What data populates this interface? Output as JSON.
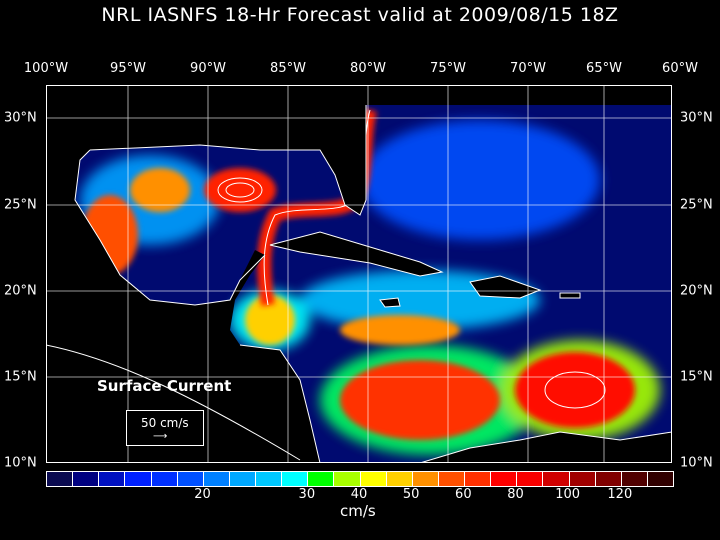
{
  "title": "NRL IASNFS  18-Hr Forecast valid at 2009/08/15 18Z",
  "lon_labels": [
    "100°W",
    "95°W",
    "90°W",
    "85°W",
    "80°W",
    "75°W",
    "70°W",
    "65°W",
    "60°W"
  ],
  "lat_labels": [
    "30°N",
    "25°N",
    "20°N",
    "15°N",
    "10°N"
  ],
  "legend": {
    "title": "Surface Current",
    "ref_vector": "50 cm/s"
  },
  "colorbar": {
    "colors": [
      "#0a0a50",
      "#000080",
      "#0010c0",
      "#0020ff",
      "#0030ff",
      "#0050ff",
      "#0080ff",
      "#00a8ff",
      "#00c8ff",
      "#00ffff",
      "#00ff00",
      "#a8ff00",
      "#ffff00",
      "#ffd000",
      "#ff9000",
      "#ff5000",
      "#ff3000",
      "#ff0000",
      "#f80000",
      "#d00000",
      "#a00000",
      "#800000",
      "#500000",
      "#300000"
    ],
    "tick_labels": [
      "20",
      "30",
      "40",
      "50",
      "60",
      "80",
      "100",
      "120"
    ],
    "tick_boundaries": [
      6,
      10,
      12,
      14,
      16,
      18,
      20,
      22
    ],
    "units": "cm/s"
  }
}
